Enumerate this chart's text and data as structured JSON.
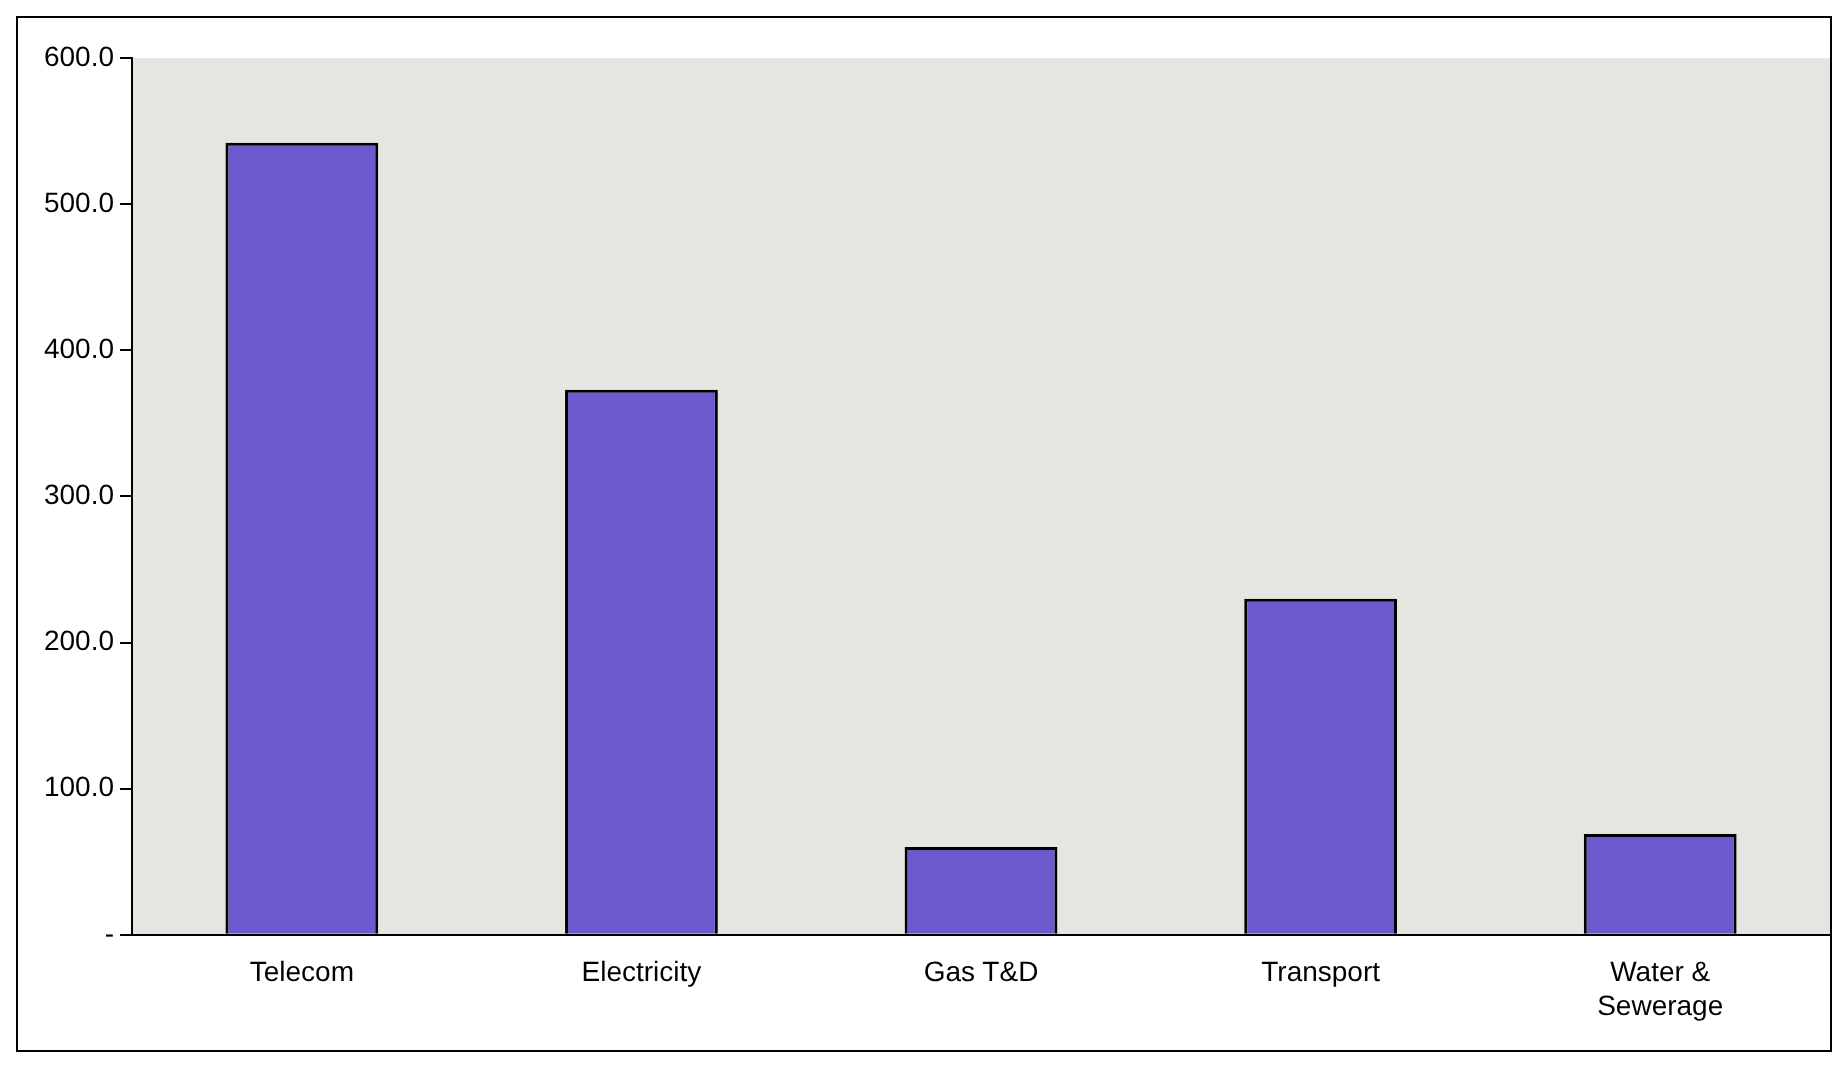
{
  "chart_data": {
    "type": "bar",
    "categories": [
      "Telecom",
      "Electricity",
      "Gas T&D",
      "Transport",
      "Water & Sewerage"
    ],
    "values": [
      542,
      373,
      60,
      230,
      69
    ],
    "color": "#6a5acd",
    "ylim": [
      0,
      600
    ],
    "yticks": [
      {
        "value": 0,
        "label": "-"
      },
      {
        "value": 100,
        "label": "100.0"
      },
      {
        "value": 200,
        "label": "200.0"
      },
      {
        "value": 300,
        "label": "300.0"
      },
      {
        "value": 400,
        "label": "400.0"
      },
      {
        "value": 500,
        "label": "500.0"
      },
      {
        "value": 600,
        "label": "600.0"
      }
    ],
    "grid": false,
    "legend": false
  }
}
